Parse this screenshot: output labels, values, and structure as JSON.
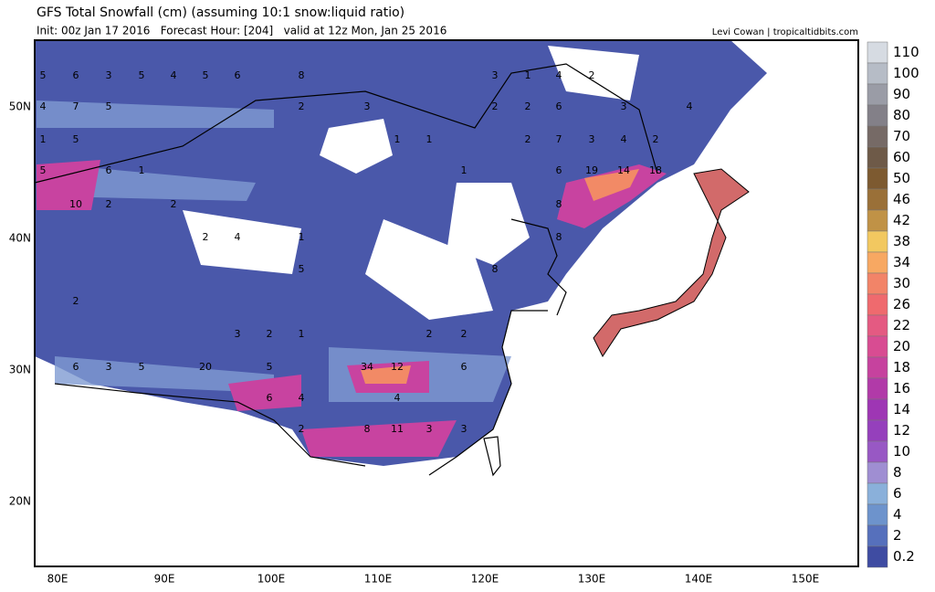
{
  "header": {
    "title": "GFS Total Snowfall (cm) (assuming 10:1 snow:liquid ratio)",
    "subtitle": "Init: 00z Jan 17 2016   Forecast Hour: [204]   valid at 12z Mon, Jan 25 2016",
    "credit": "Levi Cowan | tropicaltidbits.com"
  },
  "axes": {
    "lon_labels": [
      "80E",
      "90E",
      "100E",
      "110E",
      "120E",
      "130E",
      "140E",
      "150E"
    ],
    "lat_labels": [
      "50N",
      "40N",
      "30N",
      "20N"
    ]
  },
  "colorbar": {
    "levels": [
      110,
      100,
      90,
      80,
      70,
      60,
      50,
      46,
      42,
      38,
      34,
      30,
      26,
      22,
      20,
      18,
      16,
      14,
      12,
      10,
      8,
      6,
      4,
      2,
      0.2
    ],
    "colors": [
      "#d6dbe2",
      "#b6bcc6",
      "#9a9ca6",
      "#838088",
      "#766a66",
      "#6e5a48",
      "#7d5a30",
      "#9a7038",
      "#c09246",
      "#f2c860",
      "#f7a862",
      "#f28468",
      "#ef6a6e",
      "#e45a82",
      "#d84c92",
      "#c6429e",
      "#b13aa8",
      "#9e36b4",
      "#9540bc",
      "#9858c4",
      "#9f8ed2",
      "#8ab0da",
      "#6d93cc",
      "#5670bc",
      "#3f4ca2"
    ]
  },
  "map_labels": [
    "5",
    "6",
    "3",
    "5",
    "4",
    "5",
    "6",
    "8",
    "4",
    "7",
    "5",
    "2",
    "3",
    "3",
    "1",
    "4",
    "2",
    "2",
    "2",
    "6",
    "3",
    "4",
    "1",
    "5",
    "1",
    "1",
    "2",
    "7",
    "3",
    "4",
    "2",
    "5",
    "6",
    "1",
    "1",
    "6",
    "19",
    "14",
    "18",
    "10",
    "2",
    "2",
    "8",
    "2",
    "4",
    "1",
    "8",
    "5",
    "8",
    "2",
    "3",
    "2",
    "1",
    "2",
    "2",
    "6",
    "3",
    "5",
    "20",
    "5",
    "34",
    "12",
    "6",
    "6",
    "4",
    "4",
    "2",
    "8",
    "11",
    "3",
    "3"
  ]
}
